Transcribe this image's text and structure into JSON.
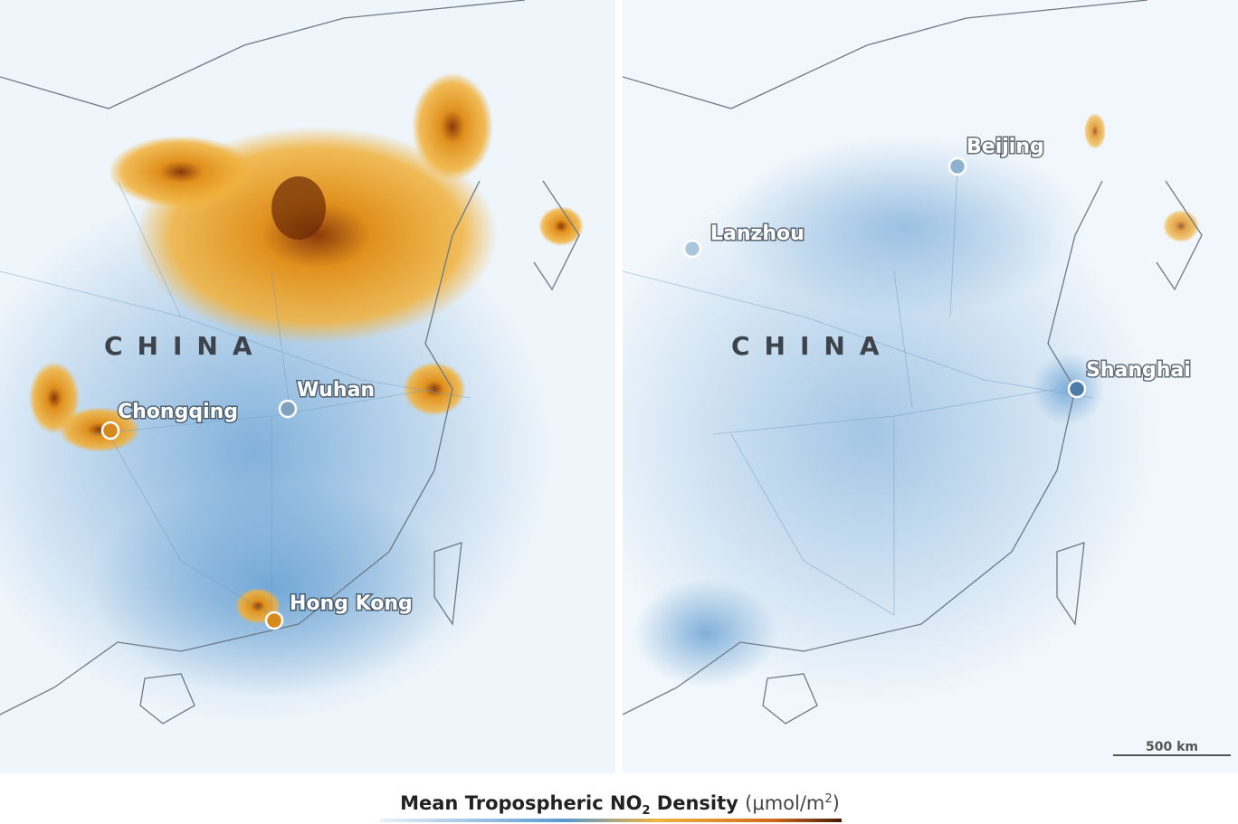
{
  "maps": [
    {
      "country_label": "CHINA",
      "cities": [
        {
          "name": "Chongqing"
        },
        {
          "name": "Wuhan"
        },
        {
          "name": "Hong Kong"
        }
      ]
    },
    {
      "country_label": "CHINA",
      "cities": [
        {
          "name": "Lanzhou"
        },
        {
          "name": "Beijing"
        },
        {
          "name": "Shanghai"
        }
      ],
      "scale_bar": "500 km"
    }
  ],
  "legend": {
    "title": [
      "Mean Tropospheric NO",
      "2",
      " Density ",
      "(μmol/m",
      "2",
      ")"
    ]
  }
}
